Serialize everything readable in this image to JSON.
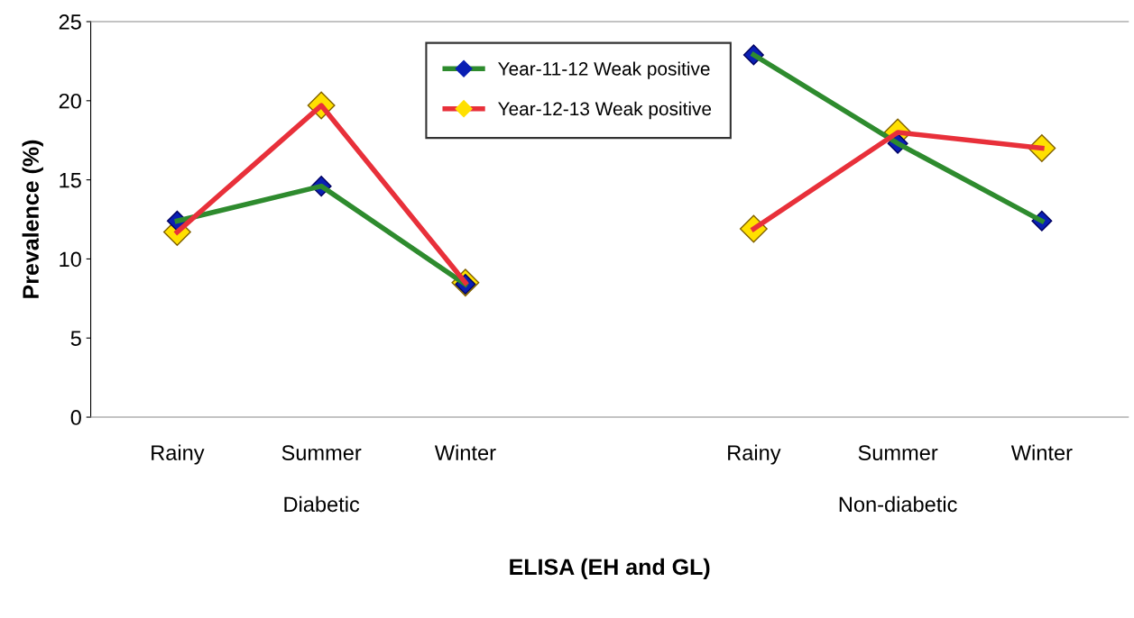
{
  "chart_data": {
    "type": "line",
    "xlabel": "ELISA (EH and GL)",
    "ylabel": "Prevalence (%)",
    "categories": [
      "Rainy",
      "Summer",
      "Winter",
      null,
      "Rainy",
      "Summer",
      "Winter"
    ],
    "annotations": [
      "Diabetic",
      "Non-diabetic"
    ],
    "series": [
      {
        "name": "Year-11-12 Weak positive",
        "color": "#2e8b2e",
        "colors": [
          "#0a1fb4",
          "#0a1fb4",
          "#0a1fb4",
          null,
          "#0a1fb4",
          "#0a1fb4",
          "#0a1fb4"
        ],
        "values": [
          12.4,
          14.6,
          8.4,
          null,
          22.9,
          17.3,
          12.4
        ]
      },
      {
        "name": "Year-12-13 Weak positive",
        "color": "#e8303a",
        "colors": [
          "#ffe000",
          "#ffe000",
          "#ffe000",
          null,
          "#ffe000",
          "#ffe000",
          "#ffe000"
        ],
        "values": [
          11.7,
          19.7,
          8.5,
          null,
          11.9,
          18.0,
          17.0
        ]
      }
    ],
    "ylim": [
      0,
      25
    ],
    "yticks": [
      0,
      5,
      10,
      15,
      20,
      25
    ],
    "grid": false,
    "legend": "top",
    "marker": "diamond",
    "line_style": "solid"
  }
}
